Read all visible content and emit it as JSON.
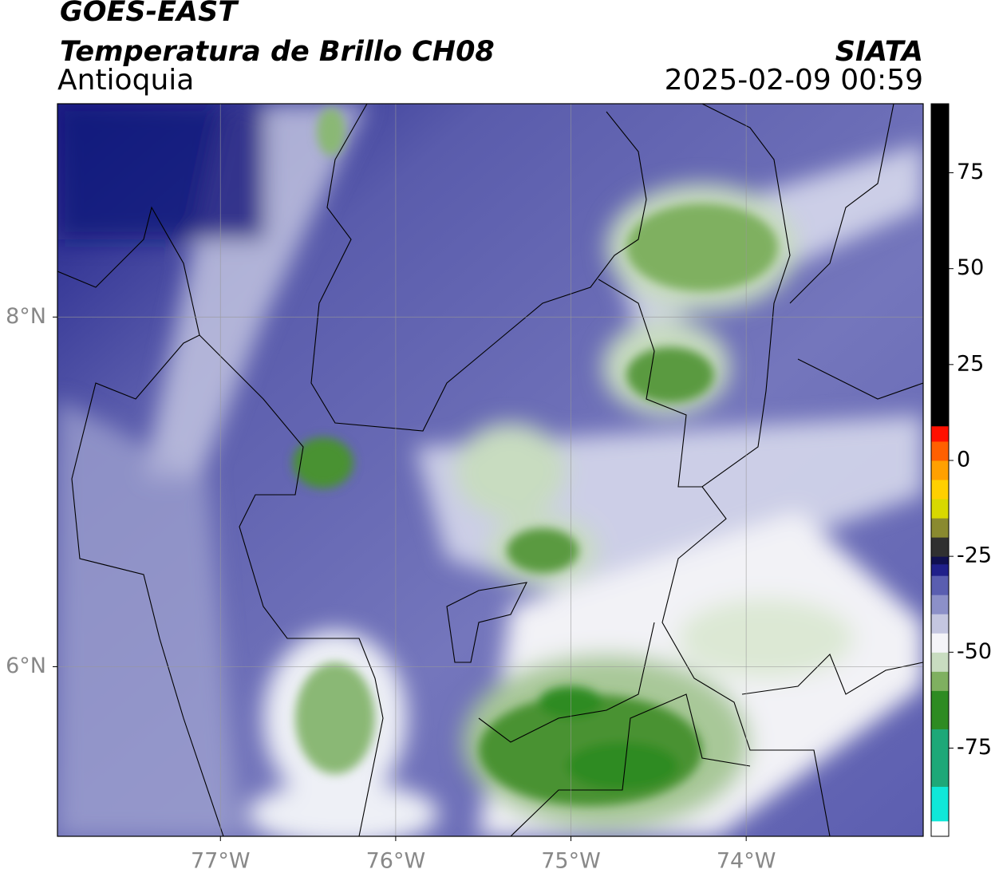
{
  "map": {
    "title": "GOES-EAST",
    "subtitle": "Temperatura de Brillo CH08",
    "region": "Antioquia",
    "source": "SIATA",
    "datetime": "2025-02-09 00:59",
    "xlim": [
      -77.93,
      -72.99
    ],
    "ylim": [
      5.03,
      9.22
    ],
    "xticks": [
      {
        "value": -77,
        "label": "77°W"
      },
      {
        "value": -76,
        "label": "76°W"
      },
      {
        "value": -75,
        "label": "75°W"
      },
      {
        "value": -74,
        "label": "74°W"
      }
    ],
    "yticks": [
      {
        "value": 6,
        "label": "6°N"
      },
      {
        "value": 8,
        "label": "8°N"
      }
    ],
    "grid": true,
    "colorbar": {
      "lim": [
        -98,
        93
      ],
      "ticks": [
        -75,
        -50,
        -25,
        0,
        25,
        50,
        75
      ],
      "levels": [
        -98,
        -94,
        -85,
        -70,
        -60,
        -55,
        -50,
        -45,
        -40,
        -35,
        -30,
        -27,
        -25,
        -20,
        -15,
        -10,
        -5,
        0,
        5,
        9,
        93
      ],
      "colors": [
        "#ffffff",
        "#10e8d8",
        "#1ea878",
        "#2e8b22",
        "#7fb060",
        "#c8dcc0",
        "#f4f4f8",
        "#c4c6e0",
        "#8c90c8",
        "#5a5eb0",
        "#20208a",
        "#101050",
        "#303030",
        "#8a8a30",
        "#d8d800",
        "#ffd000",
        "#ffa000",
        "#ff6000",
        "#ff1000",
        "#000000"
      ]
    }
  }
}
